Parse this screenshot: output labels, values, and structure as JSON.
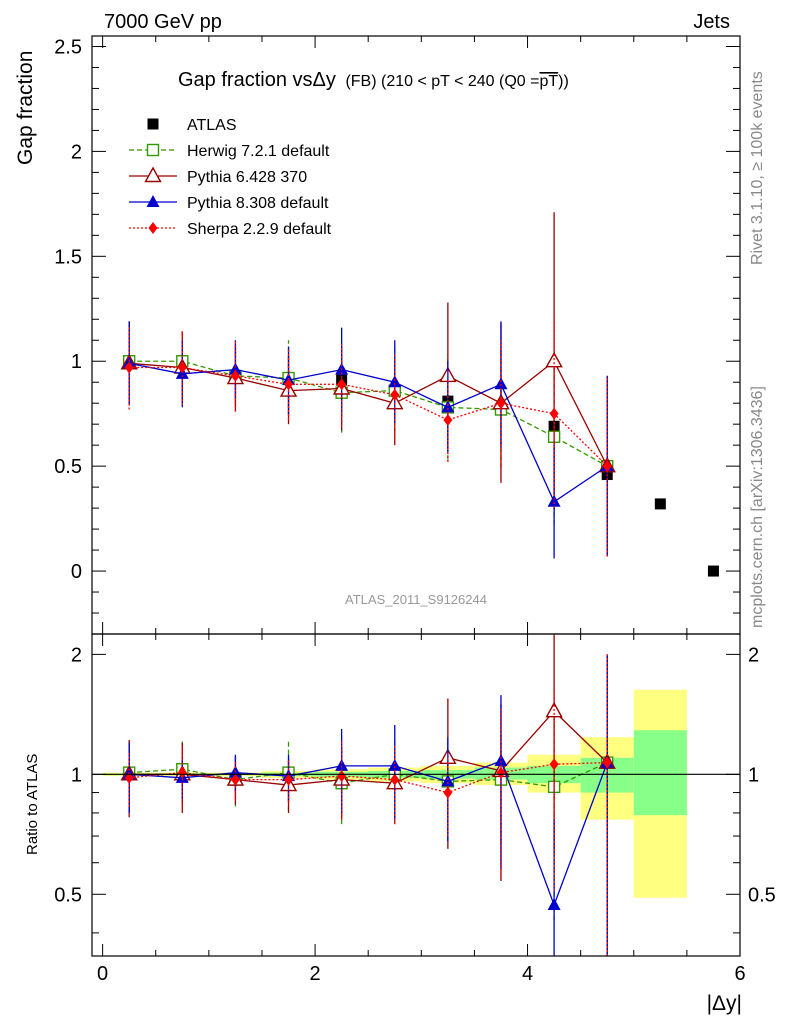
{
  "header": {
    "energy_label": "7000 GeV pp",
    "category_label": "Jets"
  },
  "side_text": {
    "rivet": "Rivet 3.1.10, ≥ 100k events",
    "mcplots": "mcplots.cern.ch [arXiv:1306.3436]"
  },
  "watermark": "ATLAS_2011_S9126244",
  "chart_data": [
    {
      "type": "scatter",
      "panel": "main",
      "title": "Gap fraction vsΔy (FB) (210 < pT < 240 (Q0 =pT))",
      "title_parts": {
        "main": "Gap fraction vsΔy",
        "sub": "(FB) (210 < pT < 240 (Q0 =",
        "overlined": "pT",
        "end": "))"
      },
      "ylabel": "Gap fraction",
      "xlabel": "|Δy|",
      "xlim": [
        -0.1,
        6.0
      ],
      "ylim": [
        -0.3,
        2.55
      ],
      "yticks": [
        0,
        0.5,
        1,
        1.5,
        2,
        2.5
      ],
      "ytick_labels": [
        "0",
        "0.5",
        "1",
        "1.5",
        "2",
        "2.5"
      ],
      "legend_position": "top-left",
      "series": [
        {
          "name": "ATLAS",
          "color": "#000000",
          "marker": "square",
          "line": "none",
          "x": [
            2.25,
            2.75,
            3.25,
            4.25,
            4.75,
            5.25,
            5.75
          ],
          "y": [
            0.91,
            0.86,
            0.81,
            0.69,
            0.46,
            0.32,
            0.0
          ],
          "err": [
            0.02,
            0.02,
            0.02,
            0.03,
            0.04,
            0.0,
            0.0
          ]
        },
        {
          "name": "Herwig 7.2.1 default",
          "color": "#339900",
          "marker": "open-square",
          "line": "dashed",
          "x": [
            0.25,
            0.75,
            1.25,
            1.75,
            2.25,
            2.75,
            3.25,
            3.75,
            4.25,
            4.75
          ],
          "y": [
            1.0,
            1.0,
            0.93,
            0.92,
            0.85,
            0.86,
            0.78,
            0.77,
            0.64,
            0.5
          ],
          "err": [
            0.18,
            0.15,
            0.14,
            0.18,
            0.19,
            0.2,
            0.25,
            0.28,
            0.42,
            0.42
          ]
        },
        {
          "name": "Pythia 6.428 370",
          "color": "#990000",
          "marker": "open-triangle",
          "line": "solid",
          "x": [
            0.25,
            0.75,
            1.25,
            1.75,
            2.25,
            2.75,
            3.25,
            3.75,
            4.25,
            4.75
          ],
          "y": [
            0.99,
            0.97,
            0.92,
            0.86,
            0.87,
            0.8,
            0.93,
            0.8,
            1.0,
            0.5
          ],
          "err": [
            0.2,
            0.17,
            0.16,
            0.16,
            0.2,
            0.2,
            0.35,
            0.38,
            0.71,
            0.43
          ]
        },
        {
          "name": "Pythia 8.308 default",
          "color": "#0000cc",
          "marker": "triangle",
          "line": "solid",
          "x": [
            0.25,
            0.75,
            1.25,
            1.75,
            2.25,
            2.75,
            3.25,
            3.75,
            4.25,
            4.75
          ],
          "y": [
            0.99,
            0.94,
            0.96,
            0.91,
            0.96,
            0.9,
            0.78,
            0.89,
            0.33,
            0.5
          ],
          "err": [
            0.2,
            0.16,
            0.14,
            0.16,
            0.2,
            0.2,
            0.22,
            0.3,
            0.27,
            0.43
          ]
        },
        {
          "name": "Sherpa 2.2.9 default",
          "color": "#ff0000",
          "marker": "diamond",
          "line": "dotted",
          "x": [
            0.25,
            0.75,
            1.25,
            1.75,
            2.25,
            2.75,
            3.25,
            3.75,
            4.25,
            4.75
          ],
          "y": [
            0.97,
            0.97,
            0.93,
            0.89,
            0.89,
            0.84,
            0.72,
            0.8,
            0.75,
            0.5
          ],
          "err": [
            0.2,
            0.18,
            0.17,
            0.17,
            0.2,
            0.2,
            0.2,
            0.3,
            0.45,
            0.43
          ]
        }
      ]
    },
    {
      "type": "scatter",
      "panel": "ratio",
      "ylabel": "Ratio to ATLAS",
      "xlabel": "|Δy|",
      "xlim": [
        -0.1,
        6.0
      ],
      "ylim": [
        0.35,
        2.25
      ],
      "yticks": [
        0.5,
        1,
        2
      ],
      "ytick_labels": [
        "0.5",
        "1",
        "2"
      ],
      "xticks": [
        0,
        2,
        4,
        6
      ],
      "xtick_labels": [
        "0",
        "2",
        "4",
        "6"
      ],
      "bands": [
        {
          "x": [
            0.0,
            0.5
          ],
          "green": [
            0.995,
            1.005
          ],
          "yellow": [
            0.99,
            1.01
          ]
        },
        {
          "x": [
            0.5,
            1.0
          ],
          "green": [
            0.995,
            1.005
          ],
          "yellow": [
            0.99,
            1.01
          ]
        },
        {
          "x": [
            1.0,
            1.5
          ],
          "green": [
            0.995,
            1.005
          ],
          "yellow": [
            0.99,
            1.01
          ]
        },
        {
          "x": [
            1.5,
            2.0
          ],
          "green": [
            0.99,
            1.01
          ],
          "yellow": [
            0.98,
            1.02
          ]
        },
        {
          "x": [
            2.0,
            2.5
          ],
          "green": [
            0.985,
            1.015
          ],
          "yellow": [
            0.97,
            1.03
          ]
        },
        {
          "x": [
            2.5,
            3.0
          ],
          "green": [
            0.98,
            1.02
          ],
          "yellow": [
            0.96,
            1.04
          ]
        },
        {
          "x": [
            3.0,
            3.5
          ],
          "green": [
            0.975,
            1.025
          ],
          "yellow": [
            0.95,
            1.05
          ]
        },
        {
          "x": [
            3.5,
            4.0
          ],
          "green": [
            0.97,
            1.04
          ],
          "yellow": [
            0.94,
            1.07
          ]
        },
        {
          "x": [
            4.0,
            4.5
          ],
          "green": [
            0.95,
            1.05
          ],
          "yellow": [
            0.9,
            1.12
          ]
        },
        {
          "x": [
            4.5,
            5.0
          ],
          "green": [
            0.9,
            1.1
          ],
          "yellow": [
            0.77,
            1.24
          ]
        },
        {
          "x": [
            5.0,
            5.5
          ],
          "green": [
            0.79,
            1.29
          ],
          "yellow": [
            0.49,
            1.63
          ]
        }
      ],
      "series": [
        {
          "name": "Herwig 7.2.1 default",
          "color": "#339900",
          "marker": "open-square",
          "line": "dashed",
          "x": [
            0.25,
            0.75,
            1.25,
            1.75,
            2.25,
            2.75,
            3.25,
            3.75,
            4.25,
            4.75
          ],
          "y": [
            1.01,
            1.03,
            0.97,
            1.01,
            0.95,
            1.0,
            0.96,
            0.97,
            0.93,
            1.07
          ],
          "err": [
            0.2,
            0.18,
            0.14,
            0.2,
            0.2,
            0.22,
            0.28,
            0.3,
            0.5,
            0.93
          ]
        },
        {
          "name": "Pythia 6.428 370",
          "color": "#990000",
          "marker": "open-triangle",
          "line": "solid",
          "x": [
            0.25,
            0.75,
            1.25,
            1.75,
            2.25,
            2.75,
            3.25,
            3.75,
            4.25,
            4.75
          ],
          "y": [
            1.0,
            1.0,
            0.97,
            0.94,
            0.97,
            0.95,
            1.1,
            1.02,
            1.44,
            1.07
          ],
          "err": [
            0.22,
            0.2,
            0.13,
            0.14,
            0.2,
            0.2,
            0.45,
            0.48,
            0.8,
            0.93
          ]
        },
        {
          "name": "Pythia 8.308 default",
          "color": "#0000cc",
          "marker": "triangle",
          "line": "solid",
          "x": [
            0.25,
            0.75,
            1.25,
            1.75,
            2.25,
            2.75,
            3.25,
            3.75,
            4.25,
            4.75
          ],
          "y": [
            1.0,
            0.98,
            1.01,
            0.99,
            1.05,
            1.05,
            0.96,
            1.08,
            0.47,
            1.07
          ],
          "err": [
            0.2,
            0.12,
            0.11,
            0.13,
            0.25,
            0.28,
            0.28,
            0.5,
            0.3,
            0.93
          ]
        },
        {
          "name": "Sherpa 2.2.9 default",
          "color": "#ff0000",
          "marker": "diamond",
          "line": "dotted",
          "x": [
            0.25,
            0.75,
            1.25,
            1.75,
            2.25,
            2.75,
            3.25,
            3.75,
            4.25,
            4.75
          ],
          "y": [
            0.98,
            1.01,
            0.97,
            0.97,
            0.99,
            0.97,
            0.9,
            1.01,
            1.06,
            1.07
          ],
          "err": [
            0.15,
            0.17,
            0.11,
            0.12,
            0.22,
            0.22,
            0.2,
            0.45,
            0.55,
            0.93
          ]
        }
      ]
    }
  ]
}
